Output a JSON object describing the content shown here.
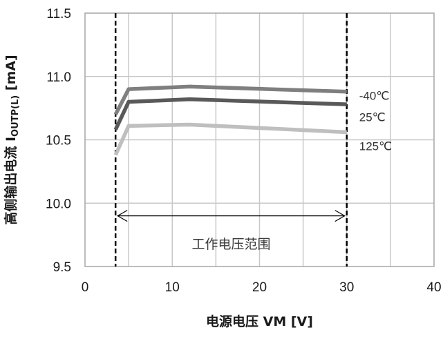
{
  "chart_data": {
    "type": "line",
    "xlabel": "电源电压 VM [V]",
    "ylabel_main": "高侧输出电流 I",
    "ylabel_sub": "OUTP(L)",
    "ylabel_unit": " [mA]",
    "xlim": [
      0,
      40
    ],
    "ylim": [
      9.5,
      11.5
    ],
    "x_ticks": [
      "0",
      "10",
      "20",
      "30",
      "40"
    ],
    "y_ticks": [
      "9.5",
      "10.0",
      "10.5",
      "11.0",
      "11.5"
    ],
    "x_tick_values": [
      0,
      10,
      20,
      30,
      40
    ],
    "y_tick_values": [
      9.5,
      10.0,
      10.5,
      11.0,
      11.5
    ],
    "x_grid": [
      5,
      10,
      15,
      20,
      25,
      30,
      35
    ],
    "y_grid": [
      10.0,
      10.5,
      11.0
    ],
    "operating_range": {
      "x_start": 3.5,
      "x_end": 30,
      "label": "工作电压范围",
      "arrow_y": 9.9,
      "label_y": 9.68
    },
    "series": [
      {
        "name": "-40℃",
        "color": "#7f7f7f",
        "label_y": 10.85,
        "points": [
          [
            3.5,
            10.7
          ],
          [
            5,
            10.9
          ],
          [
            12,
            10.92
          ],
          [
            30,
            10.88
          ]
        ]
      },
      {
        "name": "25℃",
        "color": "#595959",
        "label_y": 10.68,
        "points": [
          [
            3.5,
            10.58
          ],
          [
            5,
            10.8
          ],
          [
            12,
            10.82
          ],
          [
            30,
            10.78
          ]
        ]
      },
      {
        "name": "125℃",
        "color": "#bfbfbf",
        "label_y": 10.45,
        "points": [
          [
            3.5,
            10.38
          ],
          [
            5,
            10.61
          ],
          [
            12,
            10.62
          ],
          [
            30,
            10.56
          ]
        ]
      }
    ]
  }
}
